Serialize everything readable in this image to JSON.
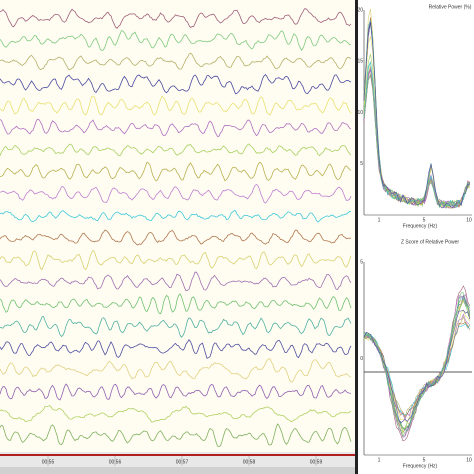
{
  "eeg": {
    "time_labels": [
      "00:55",
      "00:56",
      "00:57",
      "00:58",
      "00:59"
    ],
    "trace_colors": [
      "#a0607a",
      "#7fc97f",
      "#b5b06a",
      "#4a4aa0",
      "#e8e070",
      "#b070c0",
      "#a8d060",
      "#b8b050",
      "#c080d0",
      "#40c8d8",
      "#b07850",
      "#d8d070",
      "#a070b0",
      "#70c070",
      "#50b0a0",
      "#5050a0",
      "#e0d080",
      "#9060b0",
      "#b0d060",
      "#80b060"
    ]
  },
  "spectrum": {
    "title": "Relative Power (%)",
    "x_label": "Frequency (Hz)",
    "y_ticks": [
      "20",
      "15",
      "10",
      "5"
    ],
    "x_ticks": [
      "1",
      "5",
      "10"
    ]
  },
  "zscore": {
    "title": "Z Score of Relative Power",
    "x_label": "Frequency (Hz)",
    "y_ticks": [
      "5",
      "0"
    ],
    "x_ticks": [
      "1",
      "5",
      "10"
    ]
  }
}
